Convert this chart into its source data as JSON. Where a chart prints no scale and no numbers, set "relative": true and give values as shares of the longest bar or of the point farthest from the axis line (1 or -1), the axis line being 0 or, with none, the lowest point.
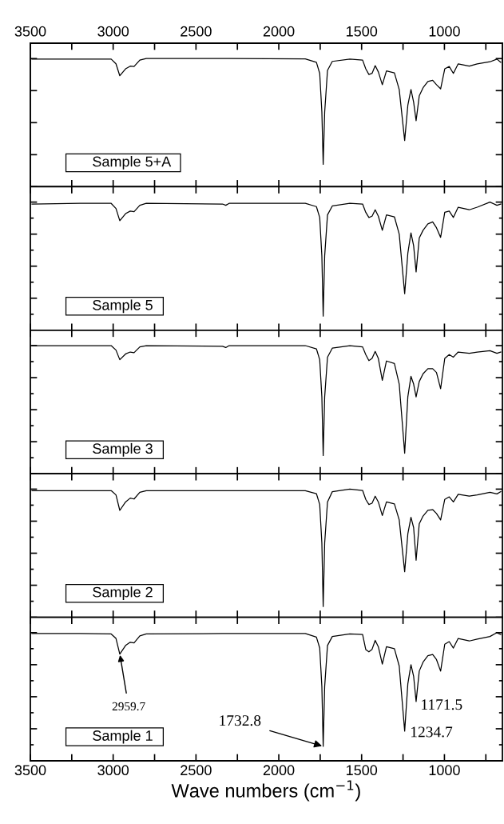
{
  "chart_data": [
    {
      "type": "line",
      "relative": true,
      "tick_labels": false,
      "xlim": [
        3500,
        650
      ],
      "xticks": [
        3500,
        {
          "value": 3250,
          "label": null
        },
        3000,
        {
          "value": 2750,
          "label": null
        },
        2500,
        {
          "value": 2250,
          "label": null
        },
        2000,
        {
          "value": 1750,
          "label": null
        },
        1500,
        {
          "value": 1250,
          "label": null
        },
        1000,
        {
          "value": 750,
          "label": null
        }
      ],
      "x2lim": [
        3500,
        650
      ],
      "x2ticks": [
        3500,
        {
          "value": 3250,
          "label": null
        },
        3000,
        {
          "value": 2750,
          "label": null
        },
        2500,
        {
          "value": 2250,
          "label": null
        },
        2000,
        {
          "value": 1750,
          "label": null
        },
        1500,
        {
          "value": 1250,
          "label": null
        },
        1000,
        {
          "value": 750,
          "label": null
        }
      ],
      "x": [
        3490,
        3200,
        3012,
        2983,
        2960,
        2925,
        2897,
        2874,
        2839,
        2800,
        2340,
        2320,
        2300,
        1840,
        1773,
        1753,
        1740,
        1732,
        1723,
        1706,
        1677,
        1571,
        1494,
        1475,
        1456,
        1437,
        1418,
        1399,
        1375,
        1350,
        1302,
        1273,
        1240,
        1221,
        1202,
        1186,
        1171,
        1152,
        1129,
        1100,
        1071,
        1048,
        1023,
        998,
        971,
        946,
        917,
        850,
        802,
        725,
        683,
        660
      ],
      "series": [
        {
          "color": "#000000",
          "values": [
            0.996,
            0.996,
            0.996,
            0.959,
            0.866,
            0.92,
            0.941,
            0.938,
            0.988,
            1,
            1,
            1,
            1,
            0.998,
            0.971,
            0.884,
            0.585,
            0.175,
            0.582,
            0.908,
            0.978,
            0.996,
            0.988,
            0.92,
            0.876,
            0.885,
            0.945,
            0.896,
            0.796,
            0.904,
            0.888,
            0.759,
            0.361,
            0.635,
            0.759,
            0.66,
            0.515,
            0.709,
            0.772,
            0.821,
            0.831,
            0.796,
            0.764,
            0.92,
            0.938,
            0.884,
            0.959,
            0.941,
            0.959,
            0.975,
            0.996,
            0.971
          ]
        }
      ],
      "annotations": [
        "Sample 5+A"
      ]
    },
    {
      "type": "line",
      "relative": true,
      "tick_labels": false,
      "xlim": [
        3500,
        650
      ],
      "xticks": [
        3500,
        {
          "value": 3250,
          "label": null
        },
        3000,
        {
          "value": 2750,
          "label": null
        },
        2500,
        {
          "value": 2250,
          "label": null
        },
        2000,
        {
          "value": 1750,
          "label": null
        },
        1500,
        {
          "value": 1250,
          "label": null
        },
        1000,
        {
          "value": 750,
          "label": null
        }
      ],
      "x": [
        3490,
        3200,
        3012,
        2983,
        2960,
        2925,
        2897,
        2874,
        2839,
        2800,
        2340,
        2320,
        2300,
        1840,
        1773,
        1753,
        1740,
        1732,
        1723,
        1706,
        1677,
        1571,
        1494,
        1475,
        1456,
        1437,
        1418,
        1399,
        1375,
        1350,
        1302,
        1273,
        1240,
        1221,
        1202,
        1186,
        1171,
        1152,
        1129,
        1100,
        1071,
        1048,
        1023,
        998,
        971,
        946,
        917,
        850,
        802,
        725,
        683,
        660
      ],
      "series": [
        {
          "color": "#000000",
          "values": [
            0.985,
            0.99,
            0.99,
            0.95,
            0.855,
            0.91,
            0.93,
            0.925,
            0.975,
            0.99,
            0.985,
            0.975,
            0.99,
            0.99,
            0.965,
            0.88,
            0.58,
            0.11,
            0.58,
            0.9,
            0.97,
            0.99,
            0.985,
            0.92,
            0.88,
            0.89,
            0.94,
            0.89,
            0.78,
            0.9,
            0.885,
            0.75,
            0.285,
            0.6,
            0.76,
            0.66,
            0.455,
            0.72,
            0.78,
            0.83,
            0.845,
            0.8,
            0.725,
            0.92,
            0.93,
            0.88,
            0.96,
            0.94,
            0.96,
            1,
            0.975,
            0.985
          ]
        }
      ],
      "annotations": [
        "Sample 5"
      ]
    },
    {
      "type": "line",
      "relative": true,
      "tick_labels": false,
      "xlim": [
        3500,
        650
      ],
      "xticks": [
        3500,
        {
          "value": 3250,
          "label": null
        },
        3000,
        {
          "value": 2750,
          "label": null
        },
        2500,
        {
          "value": 2250,
          "label": null
        },
        2000,
        {
          "value": 1750,
          "label": null
        },
        1500,
        {
          "value": 1250,
          "label": null
        },
        1000,
        {
          "value": 750,
          "label": null
        }
      ],
      "x": [
        3490,
        3200,
        3012,
        2983,
        2960,
        2925,
        2897,
        2874,
        2839,
        2800,
        2340,
        2320,
        2300,
        1840,
        1773,
        1753,
        1740,
        1732,
        1723,
        1706,
        1677,
        1571,
        1494,
        1475,
        1456,
        1437,
        1418,
        1399,
        1375,
        1350,
        1302,
        1273,
        1240,
        1221,
        1202,
        1186,
        1171,
        1152,
        1129,
        1100,
        1071,
        1048,
        1023,
        998,
        971,
        946,
        917,
        850,
        802,
        725,
        683,
        660
      ],
      "series": [
        {
          "color": "#000000",
          "values": [
            1,
            1,
            1,
            0.965,
            0.89,
            0.935,
            0.95,
            0.945,
            0.99,
            1,
            0.995,
            0.985,
            1,
            1,
            0.975,
            0.89,
            0.6,
            0.142,
            0.6,
            0.91,
            0.98,
            1,
            0.99,
            0.93,
            0.883,
            0.9,
            0.955,
            0.9,
            0.729,
            0.88,
            0.86,
            0.7,
            0.16,
            0.6,
            0.76,
            0.7,
            0.6,
            0.72,
            0.78,
            0.82,
            0.82,
            0.79,
            0.664,
            0.9,
            0.93,
            0.91,
            0.95,
            0.94,
            0.95,
            0.96,
            0.94,
            0.95
          ]
        }
      ],
      "annotations": [
        "Sample 3"
      ]
    },
    {
      "type": "line",
      "relative": true,
      "tick_labels": false,
      "xlim": [
        3500,
        650
      ],
      "xticks": [
        3500,
        {
          "value": 3250,
          "label": null
        },
        3000,
        {
          "value": 2750,
          "label": null
        },
        2500,
        {
          "value": 2250,
          "label": null
        },
        2000,
        {
          "value": 1750,
          "label": null
        },
        1500,
        {
          "value": 1250,
          "label": null
        },
        1000,
        {
          "value": 750,
          "label": null
        }
      ],
      "x": [
        3490,
        3200,
        3012,
        2983,
        2960,
        2925,
        2897,
        2874,
        2839,
        2800,
        2340,
        2320,
        2300,
        1840,
        1773,
        1753,
        1740,
        1732,
        1723,
        1706,
        1677,
        1571,
        1494,
        1475,
        1456,
        1437,
        1418,
        1399,
        1375,
        1350,
        1302,
        1273,
        1240,
        1221,
        1202,
        1186,
        1171,
        1152,
        1129,
        1100,
        1071,
        1048,
        1023,
        998,
        971,
        946,
        917,
        850,
        802,
        725,
        683,
        660
      ],
      "series": [
        {
          "color": "#000000",
          "values": [
            0.988,
            0.988,
            0.988,
            0.955,
            0.834,
            0.9,
            0.93,
            0.923,
            0.975,
            0.988,
            0.988,
            0.988,
            0.988,
            0.988,
            0.965,
            0.88,
            0.58,
            0.084,
            0.58,
            0.9,
            0.98,
            1,
            0.99,
            0.92,
            0.88,
            0.89,
            0.945,
            0.9,
            0.794,
            0.9,
            0.885,
            0.76,
            0.356,
            0.65,
            0.78,
            0.7,
            0.445,
            0.73,
            0.79,
            0.835,
            0.84,
            0.81,
            0.76,
            0.92,
            0.94,
            0.9,
            0.96,
            0.945,
            0.955,
            0.975,
            0.963,
            0.98
          ]
        }
      ],
      "annotations": [
        "Sample 2"
      ]
    },
    {
      "type": "line",
      "relative": true,
      "tick_labels": "x",
      "xlim": [
        3500,
        650
      ],
      "xticks": [
        3500,
        {
          "value": 3250,
          "label": null
        },
        3000,
        {
          "value": 2750,
          "label": null
        },
        2500,
        {
          "value": 2250,
          "label": null
        },
        2000,
        {
          "value": 1750,
          "label": null
        },
        1500,
        {
          "value": 1250,
          "label": null
        },
        1000,
        {
          "value": 750,
          "label": null
        }
      ],
      "xlabel": "Wave numbers (cm$^{−1}$)",
      "x": [
        3490,
        3200,
        3012,
        2983,
        2960,
        2925,
        2897,
        2874,
        2839,
        2800,
        2340,
        2320,
        2300,
        1840,
        1773,
        1753,
        1740,
        1732,
        1723,
        1706,
        1677,
        1571,
        1494,
        1475,
        1456,
        1437,
        1418,
        1399,
        1375,
        1350,
        1302,
        1273,
        1240,
        1221,
        1202,
        1186,
        1171,
        1152,
        1129,
        1100,
        1071,
        1048,
        1023,
        998,
        971,
        946,
        917,
        850,
        802,
        725,
        683,
        660
      ],
      "series": [
        {
          "color": "#000000",
          "values": [
            0.993,
            0.993,
            0.99,
            0.955,
            0.833,
            0.9,
            0.925,
            0.92,
            0.975,
            0.99,
            0.993,
            0.993,
            0.993,
            0.993,
            0.965,
            0.88,
            0.58,
            0.113,
            0.58,
            0.9,
            0.97,
            0.99,
            0.985,
            0.868,
            0.85,
            0.87,
            0.94,
            0.89,
            0.754,
            0.89,
            0.875,
            0.74,
            0.232,
            0.6,
            0.75,
            0.66,
            0.463,
            0.7,
            0.77,
            0.82,
            0.83,
            0.79,
            0.7,
            0.91,
            0.93,
            0.88,
            0.955,
            0.935,
            0.95,
            0.97,
            1,
            0.985
          ]
        }
      ],
      "annotations": [
        {
          "text": "2959.7",
          "x": 2959.7,
          "y": 0.833
        },
        {
          "text": "1732.8",
          "x": 1732.8,
          "y": 0.113
        },
        {
          "text": "1234.7",
          "x": 1234.7,
          "y": 0.232
        },
        {
          "text": "1171.5",
          "x": 1171.5,
          "y": 0.463
        },
        "Sample 1"
      ]
    }
  ]
}
